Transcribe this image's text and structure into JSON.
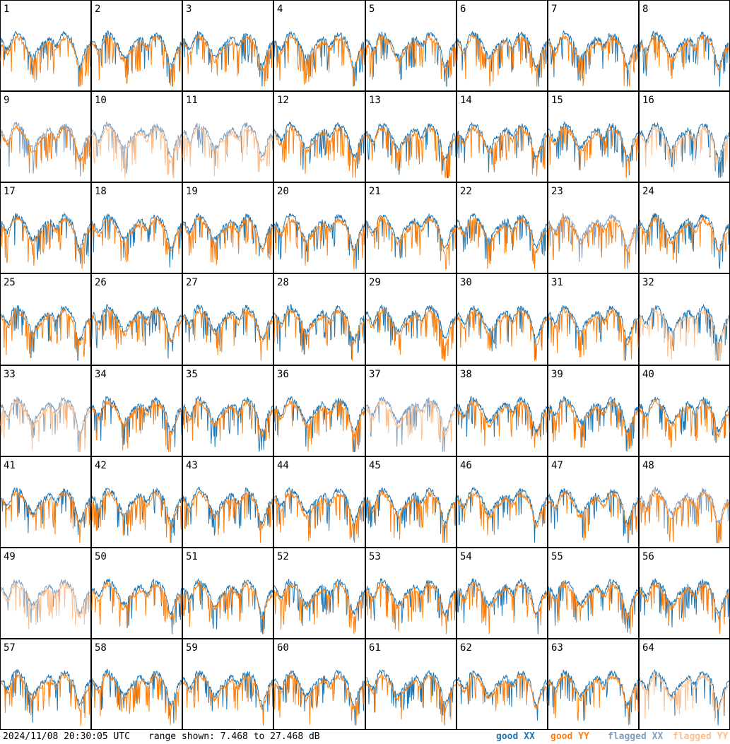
{
  "footer": {
    "timestamp": "2024/11/08 20:30:05 UTC",
    "range_text": "range shown: 7.468 to 27.468 dB"
  },
  "legend": [
    {
      "label": "good XX",
      "color": "#1f77b4"
    },
    {
      "label": "good YY",
      "color": "#ff7f0e"
    },
    {
      "label": "flagged XX",
      "color": "#7f9fbf"
    },
    {
      "label": "flagged YY",
      "color": "#ffbf8c"
    }
  ],
  "chart_data": {
    "type": "line",
    "title": "",
    "ylim": [
      7.468,
      27.468
    ],
    "yunits": "dB",
    "panels": [
      {
        "id": "1",
        "xx": "good",
        "yy": "good"
      },
      {
        "id": "2",
        "xx": "good",
        "yy": "good"
      },
      {
        "id": "3",
        "xx": "good",
        "yy": "good"
      },
      {
        "id": "4",
        "xx": "good",
        "yy": "good"
      },
      {
        "id": "5",
        "xx": "good",
        "yy": "good"
      },
      {
        "id": "6",
        "xx": "good",
        "yy": "good"
      },
      {
        "id": "7",
        "xx": "good",
        "yy": "good"
      },
      {
        "id": "8",
        "xx": "good",
        "yy": "good"
      },
      {
        "id": "9",
        "xx": "flagged",
        "yy": "good"
      },
      {
        "id": "10",
        "xx": "flagged",
        "yy": "flagged"
      },
      {
        "id": "11",
        "xx": "flagged",
        "yy": "flagged"
      },
      {
        "id": "12",
        "xx": "good",
        "yy": "good"
      },
      {
        "id": "13",
        "xx": "good",
        "yy": "good"
      },
      {
        "id": "14",
        "xx": "good",
        "yy": "good"
      },
      {
        "id": "15",
        "xx": "good",
        "yy": "good"
      },
      {
        "id": "16",
        "xx": "good",
        "yy": "flagged"
      },
      {
        "id": "17",
        "xx": "good",
        "yy": "good"
      },
      {
        "id": "18",
        "xx": "good",
        "yy": "good"
      },
      {
        "id": "19",
        "xx": "good",
        "yy": "good"
      },
      {
        "id": "20",
        "xx": "good",
        "yy": "good"
      },
      {
        "id": "21",
        "xx": "good",
        "yy": "good"
      },
      {
        "id": "22",
        "xx": "good",
        "yy": "good"
      },
      {
        "id": "23",
        "xx": "flagged",
        "yy": "good"
      },
      {
        "id": "24",
        "xx": "good",
        "yy": "good"
      },
      {
        "id": "25",
        "xx": "good",
        "yy": "good"
      },
      {
        "id": "26",
        "xx": "good",
        "yy": "good"
      },
      {
        "id": "27",
        "xx": "good",
        "yy": "good"
      },
      {
        "id": "28",
        "xx": "good",
        "yy": "good"
      },
      {
        "id": "29",
        "xx": "good",
        "yy": "good"
      },
      {
        "id": "30",
        "xx": "good",
        "yy": "good"
      },
      {
        "id": "31",
        "xx": "good",
        "yy": "good"
      },
      {
        "id": "32",
        "xx": "good",
        "yy": "flagged"
      },
      {
        "id": "33",
        "xx": "flagged",
        "yy": "flagged"
      },
      {
        "id": "34",
        "xx": "good",
        "yy": "good"
      },
      {
        "id": "35",
        "xx": "good",
        "yy": "good"
      },
      {
        "id": "36",
        "xx": "good",
        "yy": "good"
      },
      {
        "id": "37",
        "xx": "flagged",
        "yy": "flagged"
      },
      {
        "id": "38",
        "xx": "good",
        "yy": "good"
      },
      {
        "id": "39",
        "xx": "good",
        "yy": "good"
      },
      {
        "id": "40",
        "xx": "good",
        "yy": "good"
      },
      {
        "id": "41",
        "xx": "good",
        "yy": "good"
      },
      {
        "id": "42",
        "xx": "good",
        "yy": "good"
      },
      {
        "id": "43",
        "xx": "good",
        "yy": "good"
      },
      {
        "id": "44",
        "xx": "good",
        "yy": "good"
      },
      {
        "id": "45",
        "xx": "good",
        "yy": "good"
      },
      {
        "id": "46",
        "xx": "good",
        "yy": "good"
      },
      {
        "id": "47",
        "xx": "good",
        "yy": "good"
      },
      {
        "id": "48",
        "xx": "flagged",
        "yy": "good"
      },
      {
        "id": "49",
        "xx": "flagged",
        "yy": "flagged"
      },
      {
        "id": "50",
        "xx": "good",
        "yy": "good"
      },
      {
        "id": "51",
        "xx": "good",
        "yy": "good"
      },
      {
        "id": "52",
        "xx": "good",
        "yy": "good"
      },
      {
        "id": "53",
        "xx": "good",
        "yy": "good"
      },
      {
        "id": "54",
        "xx": "good",
        "yy": "good"
      },
      {
        "id": "55",
        "xx": "good",
        "yy": "good"
      },
      {
        "id": "56",
        "xx": "good",
        "yy": "good"
      },
      {
        "id": "57",
        "xx": "good",
        "yy": "good"
      },
      {
        "id": "58",
        "xx": "good",
        "yy": "good"
      },
      {
        "id": "59",
        "xx": "good",
        "yy": "good"
      },
      {
        "id": "60",
        "xx": "good",
        "yy": "good"
      },
      {
        "id": "61",
        "xx": "good",
        "yy": "good"
      },
      {
        "id": "62",
        "xx": "good",
        "yy": "good"
      },
      {
        "id": "63",
        "xx": "good",
        "yy": "good"
      },
      {
        "id": "64",
        "xx": "good",
        "yy": "flagged"
      }
    ]
  }
}
